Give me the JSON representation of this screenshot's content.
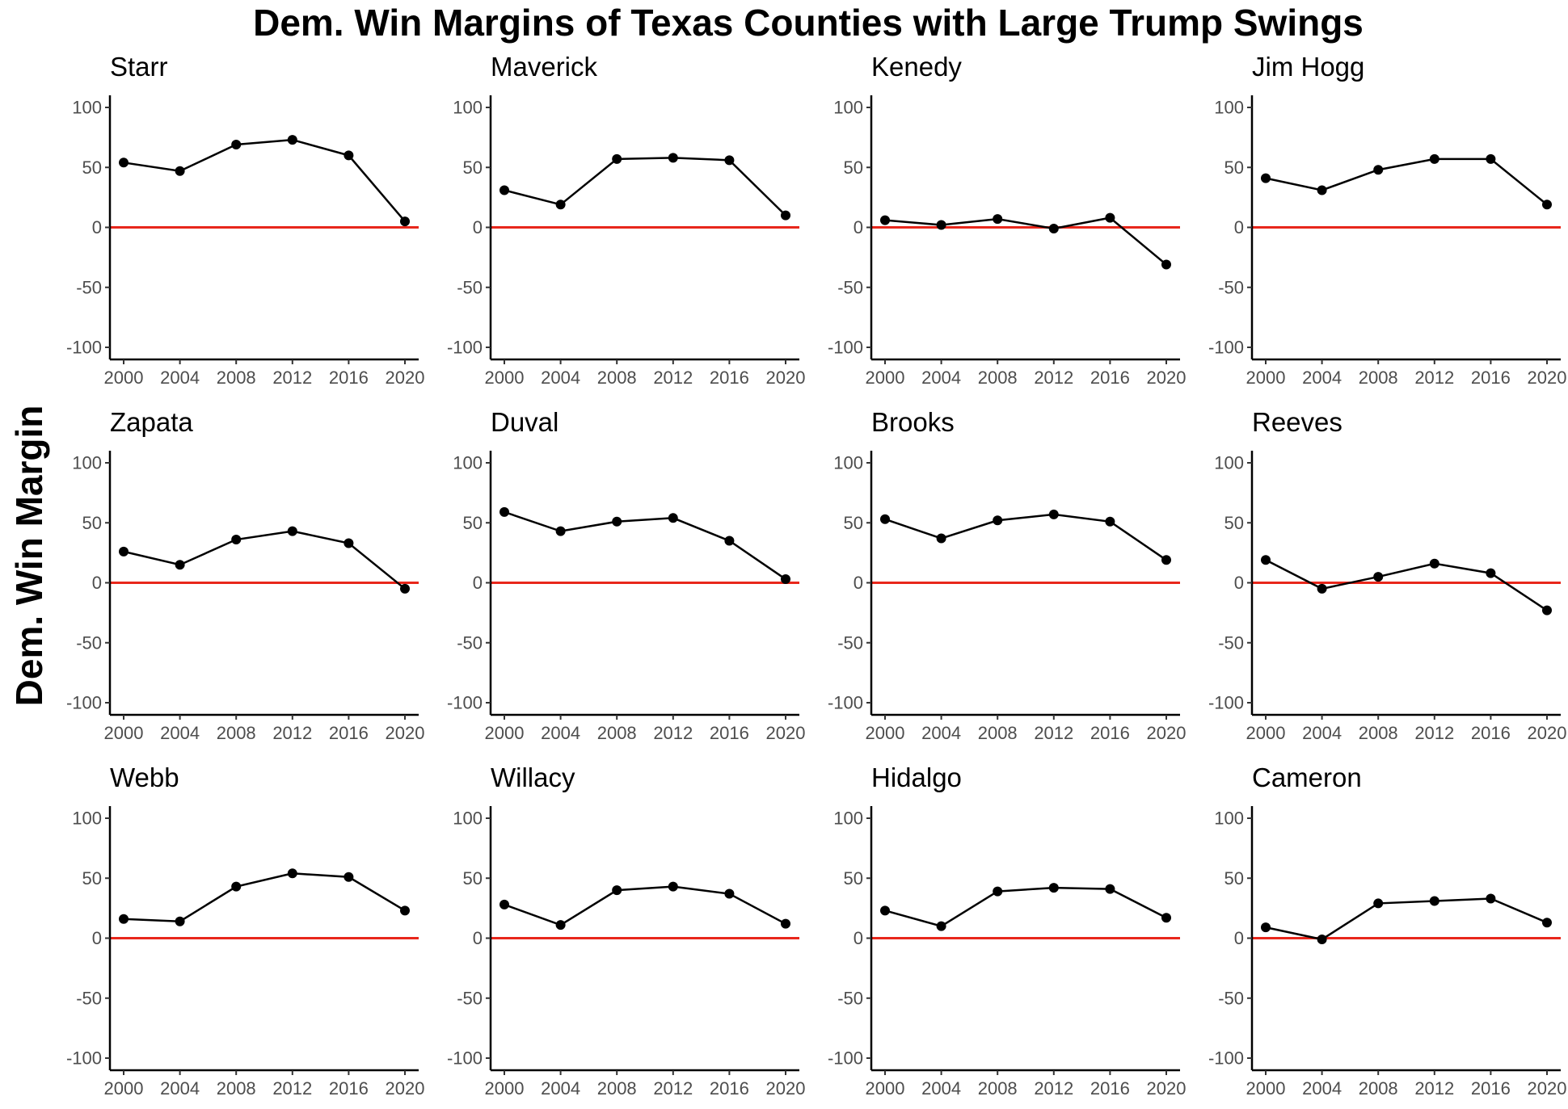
{
  "chart_data": {
    "type": "line",
    "title": "Dem. Win Margins of Texas Counties with Large Trump Swings",
    "ylabel": "Dem. Win Margin",
    "xlabel": "",
    "x": [
      2000,
      2004,
      2008,
      2012,
      2016,
      2020
    ],
    "x_ticks": [
      2000,
      2004,
      2008,
      2012,
      2016,
      2020
    ],
    "ylim": [
      -100,
      100
    ],
    "y_ticks": [
      100,
      50,
      0,
      -50,
      -100
    ],
    "reference_line": {
      "y": 0,
      "color": "#e8271b"
    },
    "layout": "facet-grid-3x4",
    "grid": false,
    "panels": [
      {
        "name": "Starr",
        "values": [
          54,
          47,
          69,
          73,
          60,
          5
        ]
      },
      {
        "name": "Maverick",
        "values": [
          31,
          19,
          57,
          58,
          56,
          10
        ]
      },
      {
        "name": "Kenedy",
        "values": [
          6,
          2,
          7,
          -1,
          8,
          -31
        ]
      },
      {
        "name": "Jim Hogg",
        "values": [
          41,
          31,
          48,
          57,
          57,
          19
        ]
      },
      {
        "name": "Zapata",
        "values": [
          26,
          15,
          36,
          43,
          33,
          -5
        ]
      },
      {
        "name": "Duval",
        "values": [
          59,
          43,
          51,
          54,
          35,
          3
        ]
      },
      {
        "name": "Brooks",
        "values": [
          53,
          37,
          52,
          57,
          51,
          19
        ]
      },
      {
        "name": "Reeves",
        "values": [
          19,
          -5,
          5,
          16,
          8,
          -23
        ]
      },
      {
        "name": "Webb",
        "values": [
          16,
          14,
          43,
          54,
          51,
          23
        ]
      },
      {
        "name": "Willacy",
        "values": [
          28,
          11,
          40,
          43,
          37,
          12
        ]
      },
      {
        "name": "Hidalgo",
        "values": [
          23,
          10,
          39,
          42,
          41,
          17
        ]
      },
      {
        "name": "Cameron",
        "values": [
          9,
          -1,
          29,
          31,
          33,
          13
        ]
      }
    ]
  }
}
